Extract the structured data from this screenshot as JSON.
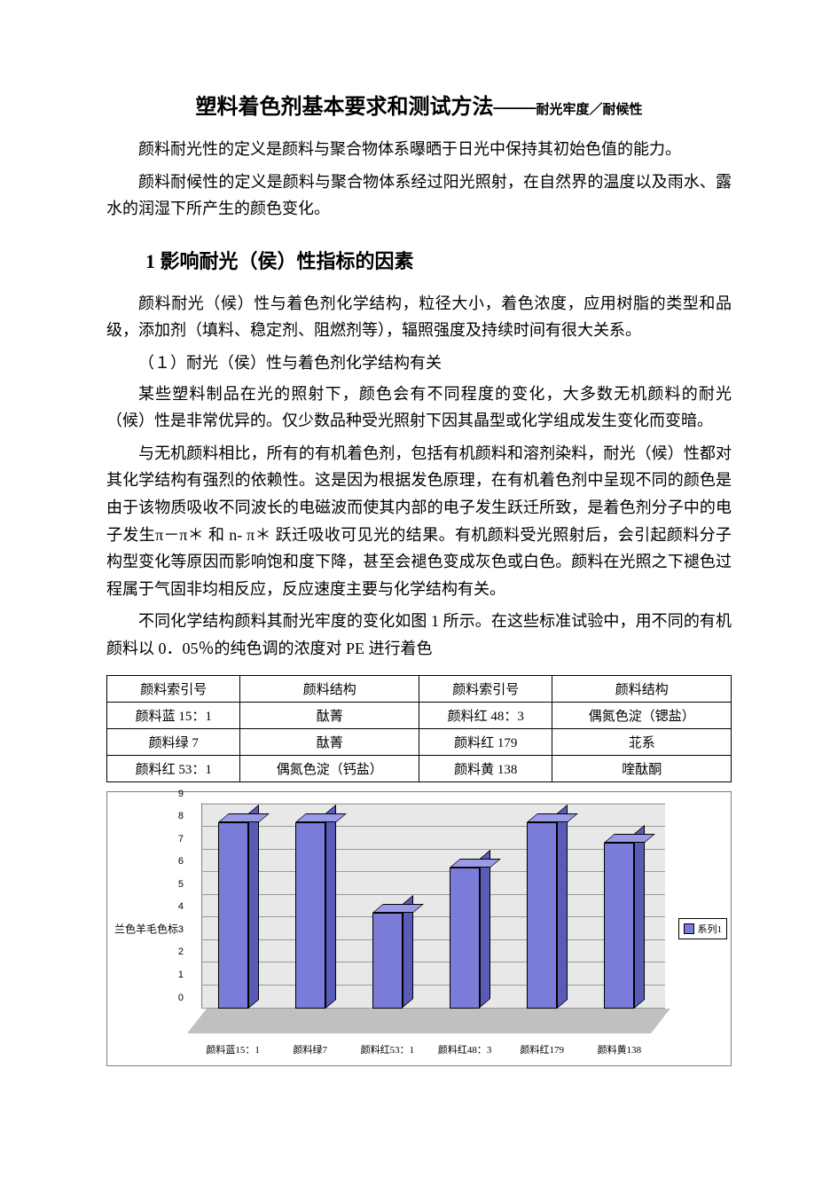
{
  "title": {
    "main": "塑料着色剂基本要求和测试方法",
    "separator": "——",
    "sub": "耐光牢度／耐候性"
  },
  "intro": {
    "p1": "颜料耐光性的定义是颜料与聚合物体系曝晒于日光中保持其初始色值的能力。",
    "p2": "颜料耐候性的定义是颜料与聚合物体系经过阳光照射，在自然界的温度以及雨水、露水的润湿下所产生的颜色变化。"
  },
  "section1": {
    "heading": "1 影响耐光（侯）性指标的因素",
    "p1": "颜料耐光（候）性与着色剂化学结构，粒径大小，着色浓度，应用树脂的类型和品级，添加剂（填料、稳定剂、阻燃剂等），辐照强度及持续时间有很大关系。",
    "sub1": "（１）耐光（侯）性与着色剂化学结构有关",
    "p2": "某些塑料制品在光的照射下，颜色会有不同程度的变化，大多数无机颜料的耐光（候）性是非常优异的。仅少数品种受光照射下因其晶型或化学组成发生变化而变暗。",
    "p3": "与无机颜料相比，所有的有机着色剂，包括有机颜料和溶剂染料，耐光（候）性都对其化学结构有强烈的依赖性。这是因为根据发色原理，在有机着色剂中呈现不同的颜色是由于该物质吸收不同波长的电磁波而使其内部的电子发生跃迁所致，是着色剂分子中的电子发生π－π＊ 和 n- π＊ 跃迁吸收可见光的结果。有机颜料受光照射后，会引起颜料分子构型变化等原因而影响饱和度下降，甚至会褪色变成灰色或白色。颜料在光照之下褪色过程属于气固非均相反应，反应速度主要与化学结构有关。",
    "p4": "不同化学结构颜料其耐光牢度的变化如图 1 所示。在这些标准试验中，用不同的有机颜料以 0．05％的纯色调的浓度对 PE 进行着色"
  },
  "table": {
    "headers": [
      "颜料索引号",
      "颜料结构",
      "颜料索引号",
      "颜料结构"
    ],
    "rows": [
      [
        "颜料蓝 15：1",
        "酞菁",
        "颜料红 48：3",
        "偶氮色淀（锶盐）"
      ],
      [
        "颜料绿 7",
        "酞菁",
        "颜料红 179",
        "苝系"
      ],
      [
        "颜料红 53：1",
        "偶氮色淀（钙盐）",
        "颜料黄 138",
        "喹酞酮"
      ]
    ]
  },
  "chart": {
    "type": "bar",
    "ylabel": "兰色羊毛色标",
    "ylim": [
      0,
      9
    ],
    "ytick_step": 1,
    "categories": [
      "颜料蓝15：1",
      "颜料绿7",
      "颜料红53：1",
      "颜料红48：3",
      "颜料红179",
      "颜料黄138"
    ],
    "values": [
      8.2,
      8.2,
      4.2,
      6.2,
      8.2,
      7.3
    ],
    "bar_front_color": "#7b7bd9",
    "bar_top_color": "#9a9ae6",
    "bar_side_color": "#5a5ab8",
    "plot_back_color": "#e8e8e8",
    "plot_floor_color": "#c0c0c0",
    "grid_color": "#9a9a9a",
    "border_color": "#7f7f7f",
    "legend_label": "系列1",
    "legend_swatch": "#7b7bd9",
    "label_fontsize": 11
  }
}
